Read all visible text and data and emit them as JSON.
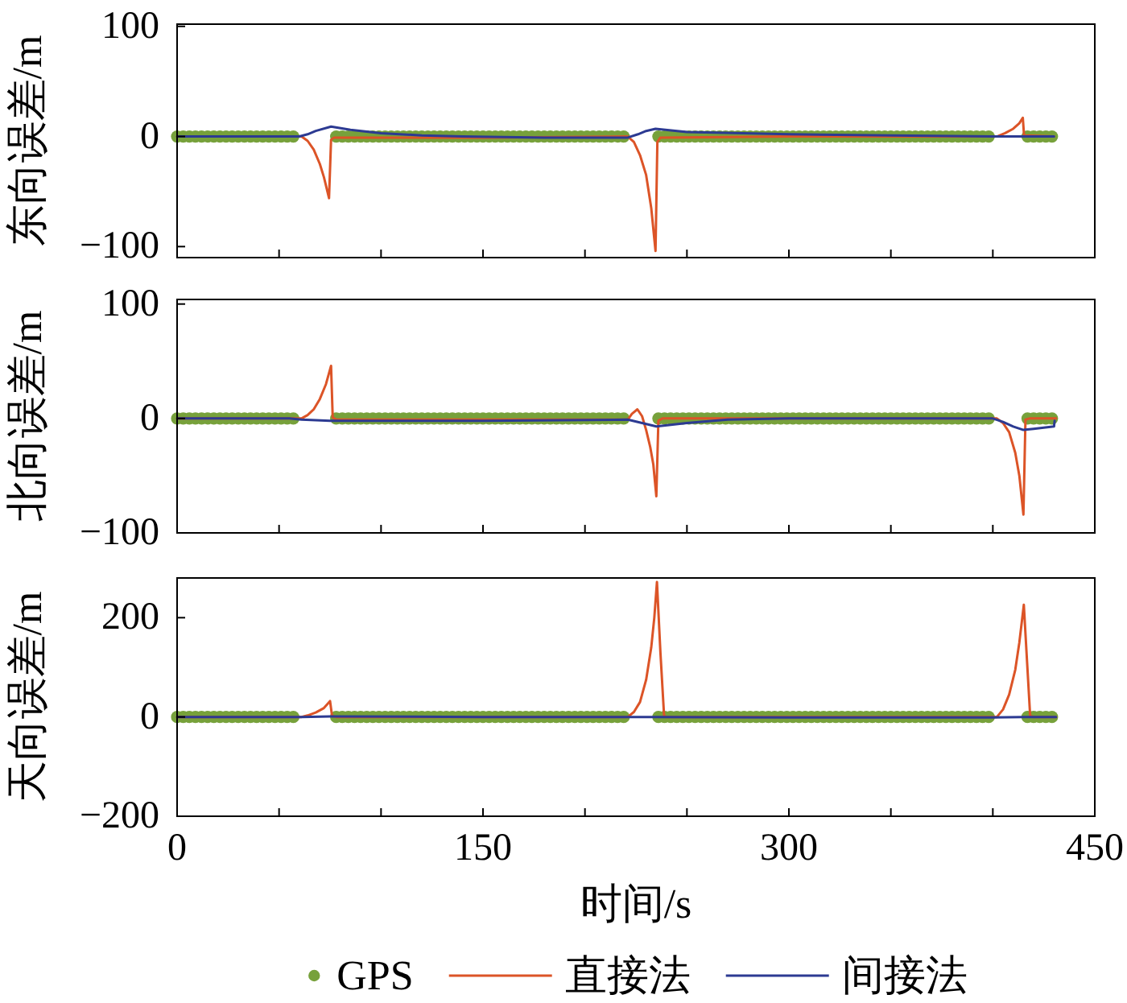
{
  "chart_data": [
    {
      "type": "line",
      "ylabel": "东向误差/m",
      "xlim": [
        0,
        450
      ],
      "ylim": [
        -110,
        102
      ],
      "xticks": [
        0,
        {
          "value": 50,
          "label": null
        },
        {
          "value": 100,
          "label": null
        },
        150,
        {
          "value": 200,
          "label": null
        },
        {
          "value": 250,
          "label": null
        },
        300,
        {
          "value": 350,
          "label": null
        },
        {
          "value": 400,
          "label": null
        },
        450
      ],
      "yticks": [
        -100,
        0,
        100
      ],
      "tick_labels": "y",
      "series": [
        {
          "type": "scatter",
          "marker": "circle",
          "color": "#77a13b",
          "x": [
            0,
            3,
            6,
            9,
            12,
            15,
            18,
            21,
            24,
            27,
            30,
            33,
            36,
            39,
            42,
            45,
            48,
            51,
            54,
            57,
            78,
            81,
            84,
            87,
            90,
            93,
            96,
            99,
            102,
            105,
            108,
            111,
            114,
            117,
            120,
            123,
            126,
            129,
            132,
            135,
            138,
            141,
            144,
            147,
            150,
            153,
            156,
            159,
            162,
            165,
            168,
            171,
            174,
            177,
            180,
            183,
            186,
            189,
            192,
            195,
            198,
            201,
            204,
            207,
            210,
            213,
            216,
            219,
            236,
            239,
            242,
            245,
            248,
            251,
            254,
            257,
            260,
            263,
            266,
            269,
            272,
            275,
            278,
            281,
            284,
            287,
            290,
            293,
            296,
            299,
            302,
            305,
            308,
            311,
            314,
            317,
            320,
            323,
            326,
            329,
            332,
            335,
            338,
            341,
            344,
            347,
            350,
            353,
            356,
            359,
            362,
            365,
            368,
            371,
            374,
            377,
            380,
            383,
            386,
            389,
            392,
            395,
            398,
            417,
            420,
            423,
            426,
            429
          ],
          "values": [
            0,
            0,
            0,
            0,
            0,
            0,
            0,
            0,
            0,
            0,
            0,
            0,
            0,
            0,
            0,
            0,
            0,
            0,
            0,
            0,
            0,
            0,
            0,
            0,
            0,
            0,
            0,
            0,
            0,
            0,
            0,
            0,
            0,
            0,
            0,
            0,
            0,
            0,
            0,
            0,
            0,
            0,
            0,
            0,
            0,
            0,
            0,
            0,
            0,
            0,
            0,
            0,
            0,
            0,
            0,
            0,
            0,
            0,
            0,
            0,
            0,
            0,
            0,
            0,
            0,
            0,
            0,
            0,
            0,
            0,
            0,
            0,
            0,
            0,
            0,
            0,
            0,
            0,
            0,
            0,
            0,
            0,
            0,
            0,
            0,
            0,
            0,
            0,
            0,
            0,
            0,
            0,
            0,
            0,
            0,
            0,
            0,
            0,
            0,
            0,
            0,
            0,
            0,
            0,
            0,
            0,
            0,
            0,
            0,
            0,
            0,
            0,
            0,
            0,
            0,
            0,
            0,
            0,
            0,
            0,
            0,
            0,
            0,
            0,
            0,
            0,
            0,
            0
          ]
        },
        {
          "type": "line",
          "color": "#dc5427",
          "x": [
            0,
            61,
            64,
            67,
            70,
            72,
            74.5,
            75.5,
            77,
            150,
            221,
            224,
            227,
            230,
            232.5,
            234.6,
            235.5,
            237,
            300,
            402,
            406,
            410,
            413,
            414.7,
            415.3,
            430
          ],
          "values": [
            0,
            0,
            -4,
            -12,
            -25,
            -37,
            -56,
            -3,
            -1,
            -1,
            0,
            -5,
            -17,
            -35,
            -65,
            -104,
            -5,
            -1,
            0,
            0,
            3,
            7,
            12,
            17,
            1,
            0
          ]
        },
        {
          "type": "line",
          "color": "#2c3a92",
          "x": [
            0,
            60,
            64,
            68,
            75.5,
            85,
            100,
            120,
            140,
            180,
            221,
            226,
            230,
            234.6,
            250,
            300,
            350,
            400,
            404,
            430
          ],
          "values": [
            0,
            0,
            2,
            5,
            9,
            6,
            3,
            1,
            0,
            -1,
            -1,
            2,
            5,
            7,
            4,
            2,
            1,
            0,
            0,
            0
          ]
        }
      ]
    },
    {
      "type": "line",
      "ylabel": "北向误差/m",
      "xlim": [
        0,
        450
      ],
      "ylim": [
        -100,
        104
      ],
      "xticks": [
        0,
        {
          "value": 50,
          "label": null
        },
        {
          "value": 100,
          "label": null
        },
        150,
        {
          "value": 200,
          "label": null
        },
        {
          "value": 250,
          "label": null
        },
        300,
        {
          "value": 350,
          "label": null
        },
        {
          "value": 400,
          "label": null
        },
        450
      ],
      "yticks": [
        -100,
        0,
        100
      ],
      "tick_labels": "y",
      "series": [
        {
          "type": "scatter",
          "marker": "circle",
          "color": "#77a13b",
          "x": [
            0,
            3,
            6,
            9,
            12,
            15,
            18,
            21,
            24,
            27,
            30,
            33,
            36,
            39,
            42,
            45,
            48,
            51,
            54,
            57,
            78,
            81,
            84,
            87,
            90,
            93,
            96,
            99,
            102,
            105,
            108,
            111,
            114,
            117,
            120,
            123,
            126,
            129,
            132,
            135,
            138,
            141,
            144,
            147,
            150,
            153,
            156,
            159,
            162,
            165,
            168,
            171,
            174,
            177,
            180,
            183,
            186,
            189,
            192,
            195,
            198,
            201,
            204,
            207,
            210,
            213,
            216,
            219,
            236,
            239,
            242,
            245,
            248,
            251,
            254,
            257,
            260,
            263,
            266,
            269,
            272,
            275,
            278,
            281,
            284,
            287,
            290,
            293,
            296,
            299,
            302,
            305,
            308,
            311,
            314,
            317,
            320,
            323,
            326,
            329,
            332,
            335,
            338,
            341,
            344,
            347,
            350,
            353,
            356,
            359,
            362,
            365,
            368,
            371,
            374,
            377,
            380,
            383,
            386,
            389,
            392,
            395,
            398,
            417,
            420,
            423,
            426,
            429
          ],
          "values": [
            0,
            0,
            0,
            0,
            0,
            0,
            0,
            0,
            0,
            0,
            0,
            0,
            0,
            0,
            0,
            0,
            0,
            0,
            0,
            0,
            0,
            0,
            0,
            0,
            0,
            0,
            0,
            0,
            0,
            0,
            0,
            0,
            0,
            0,
            0,
            0,
            0,
            0,
            0,
            0,
            0,
            0,
            0,
            0,
            0,
            0,
            0,
            0,
            0,
            0,
            0,
            0,
            0,
            0,
            0,
            0,
            0,
            0,
            0,
            0,
            0,
            0,
            0,
            0,
            0,
            0,
            0,
            0,
            0,
            0,
            0,
            0,
            0,
            0,
            0,
            0,
            0,
            0,
            0,
            0,
            0,
            0,
            0,
            0,
            0,
            0,
            0,
            0,
            0,
            0,
            0,
            0,
            0,
            0,
            0,
            0,
            0,
            0,
            0,
            0,
            0,
            0,
            0,
            0,
            0,
            0,
            0,
            0,
            0,
            0,
            0,
            0,
            0,
            0,
            0,
            0,
            0,
            0,
            0,
            0,
            0,
            0,
            0,
            0,
            0,
            0,
            0,
            0
          ]
        },
        {
          "type": "line",
          "color": "#dc5427",
          "x": [
            0,
            61,
            64,
            67,
            70,
            73,
            75.5,
            76.3,
            78,
            150,
            221,
            223,
            225.7,
            228,
            230,
            232,
            233.5,
            235,
            236,
            238,
            300,
            402,
            405,
            408,
            411,
            413,
            415,
            416,
            418,
            431
          ],
          "values": [
            0,
            0,
            3,
            8,
            17,
            30,
            46,
            1,
            -1,
            -1,
            -1,
            4,
            8,
            2,
            -10,
            -25,
            -40,
            -68,
            -2,
            0,
            0,
            0,
            -4,
            -12,
            -30,
            -50,
            -84,
            -1,
            0,
            0
          ]
        },
        {
          "type": "line",
          "color": "#2c3a92",
          "x": [
            0,
            55,
            61,
            75,
            150,
            221,
            228,
            235,
            250,
            270,
            300,
            400,
            405,
            410,
            415,
            420,
            430,
            430.3
          ],
          "values": [
            0,
            0,
            -1,
            -2,
            -2,
            -1,
            -4,
            -7,
            -4,
            -1,
            0,
            0,
            -3,
            -7,
            -10,
            -9,
            -7,
            -2
          ]
        }
      ]
    },
    {
      "type": "line",
      "ylabel": "天向误差/m",
      "xlabel": "时间/s",
      "xlim": [
        0,
        450
      ],
      "ylim": [
        -200,
        280
      ],
      "xticks": [
        0,
        {
          "value": 50,
          "label": null
        },
        {
          "value": 100,
          "label": null
        },
        150,
        {
          "value": 200,
          "label": null
        },
        {
          "value": 250,
          "label": null
        },
        300,
        {
          "value": 350,
          "label": null
        },
        {
          "value": 400,
          "label": null
        },
        450
      ],
      "yticks": [
        -200,
        0,
        200
      ],
      "legend": "bottom",
      "series": [
        {
          "name": "GPS",
          "type": "scatter",
          "marker": "circle",
          "color": "#77a13b",
          "x": [
            0,
            3,
            6,
            9,
            12,
            15,
            18,
            21,
            24,
            27,
            30,
            33,
            36,
            39,
            42,
            45,
            48,
            51,
            54,
            57,
            78,
            81,
            84,
            87,
            90,
            93,
            96,
            99,
            102,
            105,
            108,
            111,
            114,
            117,
            120,
            123,
            126,
            129,
            132,
            135,
            138,
            141,
            144,
            147,
            150,
            153,
            156,
            159,
            162,
            165,
            168,
            171,
            174,
            177,
            180,
            183,
            186,
            189,
            192,
            195,
            198,
            201,
            204,
            207,
            210,
            213,
            216,
            219,
            236,
            239,
            242,
            245,
            248,
            251,
            254,
            257,
            260,
            263,
            266,
            269,
            272,
            275,
            278,
            281,
            284,
            287,
            290,
            293,
            296,
            299,
            302,
            305,
            308,
            311,
            314,
            317,
            320,
            323,
            326,
            329,
            332,
            335,
            338,
            341,
            344,
            347,
            350,
            353,
            356,
            359,
            362,
            365,
            368,
            371,
            374,
            377,
            380,
            383,
            386,
            389,
            392,
            395,
            398,
            417,
            420,
            423,
            426,
            429
          ],
          "values": [
            0,
            0,
            0,
            0,
            0,
            0,
            0,
            0,
            0,
            0,
            0,
            0,
            0,
            0,
            0,
            0,
            0,
            0,
            0,
            0,
            0,
            0,
            0,
            0,
            0,
            0,
            0,
            0,
            0,
            0,
            0,
            0,
            0,
            0,
            0,
            0,
            0,
            0,
            0,
            0,
            0,
            0,
            0,
            0,
            0,
            0,
            0,
            0,
            0,
            0,
            0,
            0,
            0,
            0,
            0,
            0,
            0,
            0,
            0,
            0,
            0,
            0,
            0,
            0,
            0,
            0,
            0,
            0,
            0,
            0,
            0,
            0,
            0,
            0,
            0,
            0,
            0,
            0,
            0,
            0,
            0,
            0,
            0,
            0,
            0,
            0,
            0,
            0,
            0,
            0,
            0,
            0,
            0,
            0,
            0,
            0,
            0,
            0,
            0,
            0,
            0,
            0,
            0,
            0,
            0,
            0,
            0,
            0,
            0,
            0,
            0,
            0,
            0,
            0,
            0,
            0,
            0,
            0,
            0,
            0,
            0,
            0,
            0,
            0,
            0,
            0,
            0,
            0
          ]
        },
        {
          "name": "直接法",
          "type": "line",
          "color": "#dc5427",
          "x": [
            0,
            61,
            64,
            68,
            72,
            75,
            76,
            78,
            221,
            224,
            227,
            230,
            232.5,
            234,
            235.3,
            237,
            238.8,
            240,
            402,
            405,
            408,
            411,
            413,
            415.2,
            416.8,
            418.3,
            420,
            431
          ],
          "values": [
            0,
            0,
            3,
            9,
            18,
            32,
            2,
            0,
            0,
            10,
            30,
            75,
            140,
            200,
            272,
            130,
            2,
            0,
            0,
            15,
            45,
            95,
            150,
            226,
            110,
            2,
            0,
            0
          ]
        },
        {
          "name": "间接法",
          "type": "line",
          "color": "#2c3a92",
          "x": [
            0,
            61,
            75,
            150,
            221,
            235,
            300,
            400,
            415,
            431
          ],
          "values": [
            0,
            0,
            1,
            0,
            0,
            0,
            -1,
            -1,
            0,
            0
          ]
        }
      ]
    }
  ]
}
